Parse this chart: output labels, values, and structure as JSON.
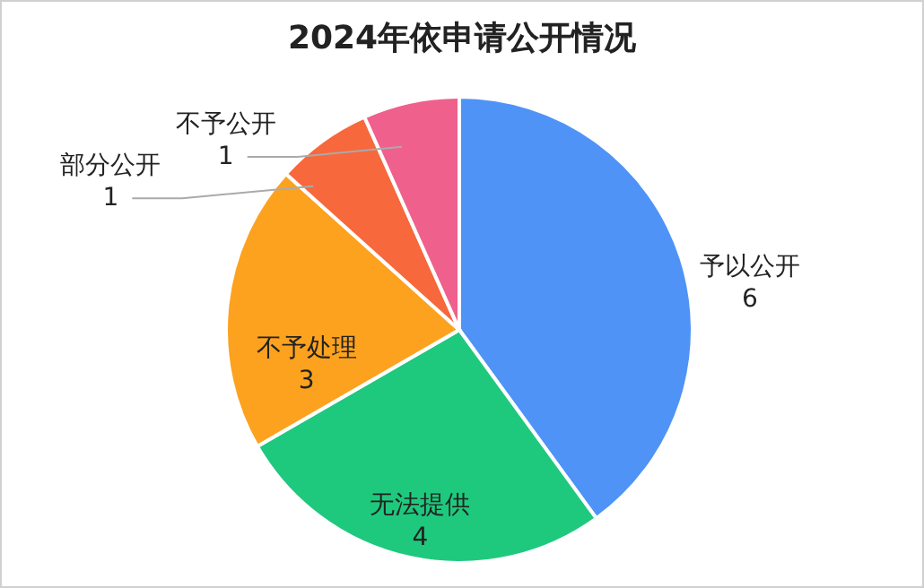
{
  "chart_data": {
    "type": "pie",
    "title": "2024年依申请公开情况",
    "categories": [
      "予以公开",
      "无法提供",
      "不予处理",
      "部分公开",
      "不予公开"
    ],
    "values": [
      6,
      4,
      3,
      1,
      1
    ],
    "colors": [
      "#4f93f6",
      "#1ec97e",
      "#fca21e",
      "#f7683c",
      "#f0608c"
    ],
    "data_labels": true
  }
}
